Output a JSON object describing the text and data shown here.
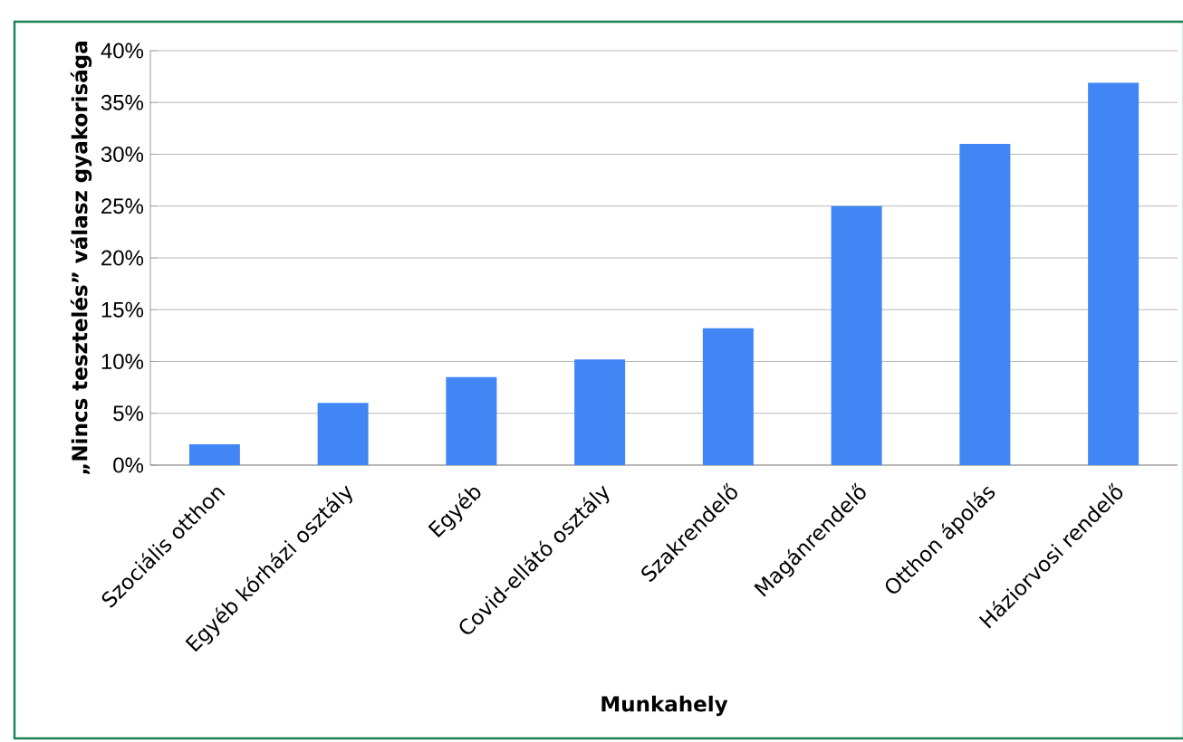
{
  "chart_data": {
    "type": "bar",
    "xlabel": "Munkahely",
    "ylabel": "„Nincs tesztelés” válasz gyakorisága",
    "categories": [
      "Szociális otthon",
      "Egyéb kórházi osztály",
      "Egyéb",
      "Covid-ellátó osztály",
      "Szakrendelő",
      "Magánrendelő",
      "Otthon ápolás",
      "Háziorvosi rendelő"
    ],
    "values": [
      2,
      6,
      8.5,
      10.2,
      13.2,
      25,
      31,
      36.9
    ],
    "color": "#4285f4",
    "ylim": [
      0,
      40
    ],
    "yticks": [
      {
        "value": 0,
        "label": "0%"
      },
      {
        "value": 5,
        "label": "5%"
      },
      {
        "value": 10,
        "label": "10%"
      },
      {
        "value": 15,
        "label": "15%"
      },
      {
        "value": 20,
        "label": "20%"
      },
      {
        "value": 25,
        "label": "25%"
      },
      {
        "value": 30,
        "label": "30%"
      },
      {
        "value": 35,
        "label": "35%"
      },
      {
        "value": 40,
        "label": "40%"
      }
    ],
    "grid": "y"
  }
}
